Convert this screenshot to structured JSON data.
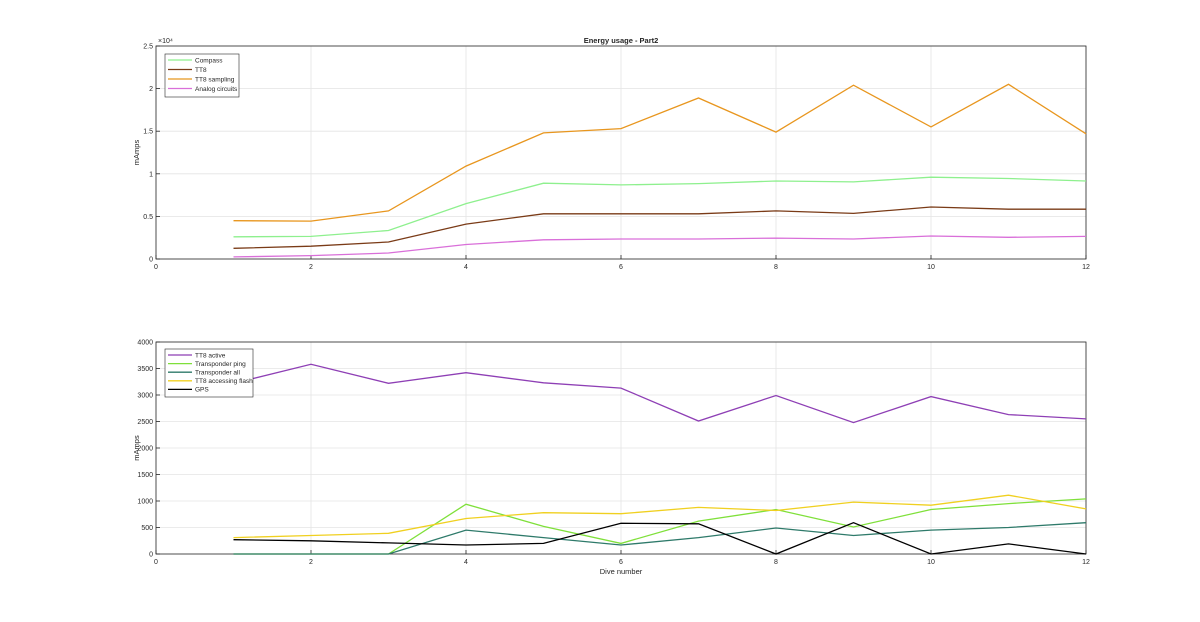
{
  "chart_data": [
    {
      "type": "line",
      "title": "Energy usage - Part2",
      "xlabel": "",
      "ylabel": "mAmps",
      "exponent": "×10⁴",
      "xlim": [
        0,
        12
      ],
      "ylim": [
        0,
        25000
      ],
      "xticks": [
        0,
        2,
        4,
        6,
        8,
        10,
        12
      ],
      "yticks": [
        0,
        5000,
        10000,
        15000,
        20000,
        25000
      ],
      "ytick_labels": [
        "0",
        "0.5",
        "1",
        "1.5",
        "2",
        "2.5"
      ],
      "grid": true,
      "legend_position": "top-left",
      "x": [
        1,
        2,
        3,
        4,
        5,
        6,
        7,
        8,
        9,
        10,
        11,
        12
      ],
      "series": [
        {
          "name": "Compass",
          "color": "#8ef08e",
          "values": [
            2600,
            2650,
            3350,
            6500,
            8900,
            8700,
            8850,
            9150,
            9050,
            9600,
            9450,
            9150
          ]
        },
        {
          "name": "TT8",
          "color": "#7a3b17",
          "values": [
            1250,
            1500,
            2000,
            4100,
            5300,
            5300,
            5300,
            5650,
            5350,
            6100,
            5850,
            5850
          ]
        },
        {
          "name": "TT8 sampling",
          "color": "#e8961e",
          "values": [
            4500,
            4450,
            5650,
            10900,
            14800,
            15300,
            18900,
            14900,
            20400,
            15500,
            20500,
            14700
          ]
        },
        {
          "name": "Analog circuits",
          "color": "#d96fd9",
          "values": [
            250,
            400,
            700,
            1700,
            2250,
            2350,
            2350,
            2450,
            2350,
            2700,
            2550,
            2650
          ]
        }
      ]
    },
    {
      "type": "line",
      "title": "",
      "xlabel": "Dive number",
      "ylabel": "mAmps",
      "xlim": [
        0,
        12
      ],
      "ylim": [
        0,
        4000
      ],
      "xticks": [
        0,
        2,
        4,
        6,
        8,
        10,
        12
      ],
      "yticks": [
        0,
        500,
        1000,
        1500,
        2000,
        2500,
        3000,
        3500,
        4000
      ],
      "ytick_labels": [
        "0",
        "500",
        "1000",
        "1500",
        "2000",
        "2500",
        "3000",
        "3500",
        "4000"
      ],
      "grid": true,
      "legend_position": "top-left",
      "x": [
        1,
        2,
        3,
        4,
        5,
        6,
        7,
        8,
        9,
        10,
        11,
        12
      ],
      "series": [
        {
          "name": "TT8 active",
          "color": "#8e3fb5",
          "values": [
            3220,
            3580,
            3220,
            3420,
            3230,
            3130,
            2510,
            2990,
            2480,
            2970,
            2630,
            2550
          ]
        },
        {
          "name": "Transponder ping",
          "color": "#7fe03a",
          "values": [
            0,
            0,
            0,
            940,
            520,
            200,
            620,
            840,
            510,
            840,
            950,
            1040
          ]
        },
        {
          "name": "Transponder all",
          "color": "#2e7a6a",
          "values": [
            0,
            0,
            0,
            450,
            310,
            170,
            310,
            490,
            350,
            450,
            500,
            590
          ]
        },
        {
          "name": "TT8 accessing flash",
          "color": "#f0d020",
          "values": [
            310,
            350,
            390,
            670,
            780,
            760,
            880,
            820,
            980,
            920,
            1110,
            850
          ]
        },
        {
          "name": "GPS",
          "color": "#000000",
          "values": [
            270,
            250,
            210,
            170,
            200,
            580,
            570,
            0,
            590,
            0,
            190,
            0
          ]
        }
      ]
    }
  ]
}
